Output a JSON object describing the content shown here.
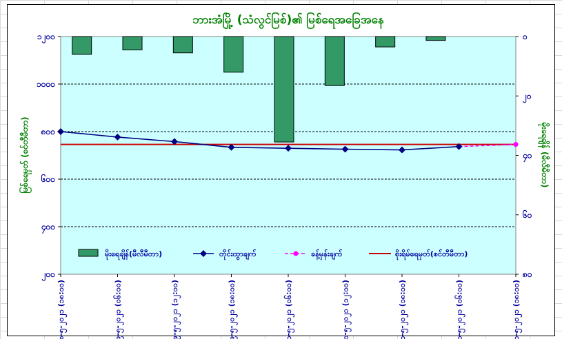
{
  "chart_data": {
    "type": "bar",
    "title": "ဘားအံမြို့ (သံလွင်မြစ်)၏ မြစ်ရေအခြေအနေ",
    "ylabel_left": "မြစ်ရေမှတ် (စင်တီမီတာ)",
    "ylabel_right": "မိုးရေချိန် (မီလီမီတာ)",
    "categories": [
      "၈-၅-၂၀၂၁ (၁၈:၀၀)",
      "၉-၅-၂၀၂၁ (၀၆:၀၀)",
      "၉-၅-၂၀၂၁ (၁၂:၀၀)",
      "၉-၅-၂၀၂၁ (၁၈:၀၀)",
      "၁၀-၅-၂၀၂၁ (၀၆:၀၀)",
      "၁၀-၅-၂၀၂၁ (၁၂:၀၀)",
      "၁၀-၅-၂၀၂၁ (၁၈:၀၀)",
      "၁၁-၅-၂၀၂၁ (၀၆:၀၀)",
      "၁၁-၅-၂၀၂၁ (၁၈:၀၀)"
    ],
    "left_axis": {
      "min": 200,
      "max": 1200,
      "ticks": [
        200,
        400,
        600,
        800,
        1000,
        1200
      ],
      "tick_labels": [
        "၂၀၀",
        "၄၀၀",
        "၆၀၀",
        "၈၀၀",
        "၁၀၀၀",
        "၁၂၀၀"
      ]
    },
    "right_axis": {
      "min": 0,
      "max": 80,
      "reversed": true,
      "ticks": [
        0,
        20,
        40,
        60,
        80
      ],
      "tick_labels": [
        "၀",
        "၂၀",
        "၄၀",
        "၆၀",
        "၈၀"
      ]
    },
    "grid": "horizontal dashed",
    "legend_position": "bottom",
    "series": [
      {
        "name": "မိုးရေချိန်(မီလီမီတာ)",
        "type": "bar",
        "axis": "right",
        "color": "#339966",
        "values": [
          6,
          4.5,
          5.5,
          12,
          35.5,
          16.5,
          3.5,
          1.3,
          null
        ]
      },
      {
        "name": "တိုင်းထွာချက်",
        "type": "line",
        "axis": "left",
        "color": "#000080",
        "values": [
          800,
          777,
          758,
          734,
          730,
          726,
          723,
          737,
          null
        ]
      },
      {
        "name": "ခန့်မှန်းချက်",
        "type": "line-dashed",
        "axis": "left",
        "color": "#ff00ff",
        "values": [
          null,
          null,
          null,
          null,
          null,
          null,
          null,
          737,
          746
        ]
      },
      {
        "name": "စိုးရိမ်ရေမှတ်(စင်တီမီတာ)",
        "type": "hline",
        "axis": "left",
        "color": "#cc0000",
        "value": 746
      }
    ]
  }
}
